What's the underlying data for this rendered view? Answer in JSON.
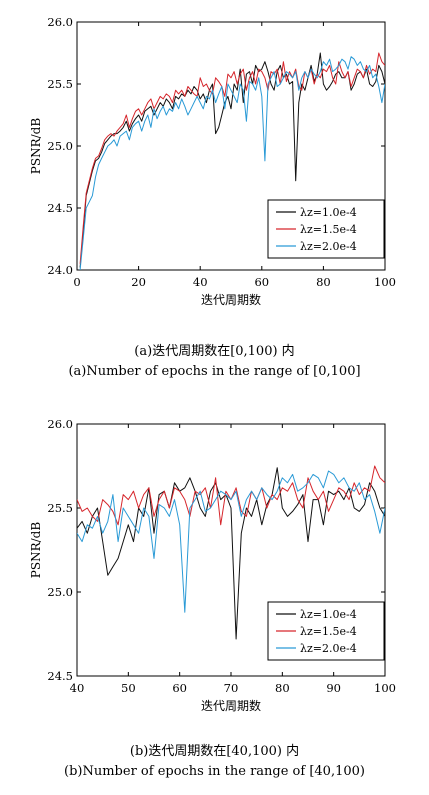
{
  "chart_data": [
    {
      "type": "line",
      "panel": "a",
      "xlabel": "迭代周期数",
      "ylabel": "PSNR/dB",
      "xlim": [
        0,
        100
      ],
      "ylim": [
        24.0,
        26.0
      ],
      "xticks": [
        "0",
        "20",
        "40",
        "60",
        "80",
        "100"
      ],
      "yticks": [
        "24.0",
        "24.5",
        "25.0",
        "25.5",
        "26.0"
      ],
      "legend_position": "bottom-right",
      "grid": false,
      "caption_cn": "(a)迭代周期数在[0,100) 内",
      "caption_en": "(a)Number of epochs in the range of [0,100]",
      "x": [
        1,
        2,
        3,
        4,
        5,
        6,
        7,
        8,
        9,
        10,
        11,
        12,
        13,
        14,
        15,
        16,
        17,
        18,
        19,
        20,
        21,
        22,
        23,
        24,
        25,
        26,
        27,
        28,
        29,
        30,
        31,
        32,
        33,
        34,
        35,
        36,
        37,
        38,
        39,
        40,
        41,
        42,
        43,
        44,
        45,
        46,
        47,
        48,
        49,
        50,
        51,
        52,
        53,
        54,
        55,
        56,
        57,
        58,
        59,
        60,
        61,
        62,
        63,
        64,
        65,
        66,
        67,
        68,
        69,
        70,
        71,
        72,
        73,
        74,
        75,
        76,
        77,
        78,
        79,
        80,
        81,
        82,
        83,
        84,
        85,
        86,
        87,
        88,
        89,
        90,
        91,
        92,
        93,
        94,
        95,
        96,
        97,
        98,
        99,
        100
      ],
      "series": [
        {
          "name": "λz=1.0e-4",
          "color": "#111111",
          "values": [
            24.02,
            24.3,
            24.6,
            24.7,
            24.8,
            24.88,
            24.9,
            24.95,
            25.02,
            25.05,
            25.08,
            25.1,
            25.1,
            25.12,
            25.15,
            25.2,
            25.12,
            25.18,
            25.22,
            25.25,
            25.2,
            25.28,
            25.3,
            25.32,
            25.25,
            25.3,
            25.35,
            25.32,
            25.38,
            25.35,
            25.3,
            25.4,
            25.38,
            25.42,
            25.4,
            25.45,
            25.42,
            25.48,
            25.45,
            25.38,
            25.42,
            25.35,
            25.45,
            25.5,
            25.1,
            25.15,
            25.25,
            25.35,
            25.4,
            25.3,
            25.5,
            25.45,
            25.62,
            25.35,
            25.58,
            25.6,
            25.5,
            25.65,
            25.6,
            25.62,
            25.68,
            25.6,
            25.5,
            25.45,
            25.6,
            25.65,
            25.55,
            25.58,
            25.5,
            25.52,
            24.72,
            25.35,
            25.5,
            25.45,
            25.55,
            25.65,
            25.52,
            25.58,
            25.75,
            25.5,
            25.45,
            25.48,
            25.52,
            25.58,
            25.6,
            25.55,
            25.55,
            25.6,
            25.45,
            25.5,
            25.58,
            25.6,
            25.55,
            25.62,
            25.5,
            25.48,
            25.52,
            25.65,
            25.6,
            25.5
          ]
        },
        {
          "name": "λz=1.5e-4",
          "color": "#d6262c",
          "values": [
            24.05,
            24.35,
            24.62,
            24.72,
            24.82,
            24.9,
            24.92,
            24.98,
            25.05,
            25.08,
            25.1,
            25.08,
            25.12,
            25.15,
            25.18,
            25.25,
            25.15,
            25.22,
            25.28,
            25.3,
            25.25,
            25.3,
            25.35,
            25.38,
            25.3,
            25.35,
            25.4,
            25.38,
            25.42,
            25.4,
            25.35,
            25.45,
            25.42,
            25.45,
            25.4,
            25.48,
            25.45,
            25.42,
            25.4,
            25.55,
            25.48,
            25.5,
            25.45,
            25.42,
            25.55,
            25.52,
            25.48,
            25.4,
            25.58,
            25.55,
            25.6,
            25.5,
            25.58,
            25.62,
            25.45,
            25.55,
            25.6,
            25.5,
            25.62,
            25.6,
            25.55,
            25.45,
            25.6,
            25.58,
            25.62,
            25.5,
            25.68,
            25.52,
            25.6,
            25.55,
            25.62,
            25.48,
            25.45,
            25.6,
            25.55,
            25.62,
            25.5,
            25.58,
            25.55,
            25.62,
            25.6,
            25.65,
            25.55,
            25.5,
            25.68,
            25.6,
            25.55,
            25.6,
            25.48,
            25.55,
            25.62,
            25.6,
            25.55,
            25.65,
            25.58,
            25.62,
            25.6,
            25.75,
            25.68,
            25.65
          ]
        },
        {
          "name": "λz=2.0e-4",
          "color": "#2a9ad6",
          "values": [
            24.0,
            24.25,
            24.5,
            24.55,
            24.6,
            24.75,
            24.85,
            24.9,
            24.95,
            25.0,
            25.02,
            25.05,
            25.0,
            25.08,
            25.1,
            25.12,
            25.05,
            25.15,
            25.18,
            25.2,
            25.12,
            25.2,
            25.25,
            25.15,
            25.3,
            25.22,
            25.28,
            25.32,
            25.25,
            25.3,
            25.28,
            25.35,
            25.3,
            25.38,
            25.32,
            25.25,
            25.3,
            25.35,
            25.4,
            25.35,
            25.3,
            25.4,
            25.38,
            25.45,
            25.35,
            25.42,
            25.48,
            25.3,
            25.5,
            25.45,
            25.4,
            25.35,
            25.5,
            25.45,
            25.2,
            25.52,
            25.5,
            25.45,
            25.55,
            25.4,
            24.88,
            25.5,
            25.55,
            25.6,
            25.48,
            25.5,
            25.55,
            25.6,
            25.58,
            25.55,
            25.6,
            25.45,
            25.55,
            25.6,
            25.55,
            25.62,
            25.58,
            25.55,
            25.6,
            25.68,
            25.65,
            25.7,
            25.6,
            25.62,
            25.65,
            25.7,
            25.68,
            25.62,
            25.72,
            25.7,
            25.65,
            25.68,
            25.62,
            25.6,
            25.65,
            25.55,
            25.58,
            25.48,
            25.35,
            25.5
          ]
        }
      ]
    },
    {
      "type": "line",
      "panel": "b",
      "xlabel": "迭代周期数",
      "ylabel": "PSNR/dB",
      "xlim": [
        40,
        100
      ],
      "ylim": [
        24.5,
        26.0
      ],
      "xticks": [
        "40",
        "50",
        "60",
        "70",
        "80",
        "90",
        "100"
      ],
      "yticks": [
        "24.5",
        "25.0",
        "25.5",
        "26.0"
      ],
      "legend_position": "bottom-right",
      "grid": false,
      "caption_cn": "(b)迭代周期数在[40,100) 内",
      "caption_en": "(b)Number of epochs in the range of [40,100)",
      "x": [
        40,
        41,
        42,
        43,
        44,
        45,
        46,
        47,
        48,
        49,
        50,
        51,
        52,
        53,
        54,
        55,
        56,
        57,
        58,
        59,
        60,
        61,
        62,
        63,
        64,
        65,
        66,
        67,
        68,
        69,
        70,
        71,
        72,
        73,
        74,
        75,
        76,
        77,
        78,
        79,
        80,
        81,
        82,
        83,
        84,
        85,
        86,
        87,
        88,
        89,
        90,
        91,
        92,
        93,
        94,
        95,
        96,
        97,
        98,
        99,
        100
      ],
      "series": [
        {
          "name": "λz=1.0e-4",
          "color": "#111111",
          "values": [
            25.38,
            25.42,
            25.35,
            25.45,
            25.5,
            25.3,
            25.1,
            25.15,
            25.2,
            25.3,
            25.4,
            25.3,
            25.5,
            25.45,
            25.62,
            25.35,
            25.58,
            25.6,
            25.5,
            25.65,
            25.6,
            25.62,
            25.68,
            25.6,
            25.5,
            25.45,
            25.6,
            25.65,
            25.55,
            25.58,
            25.5,
            24.72,
            25.35,
            25.5,
            25.45,
            25.55,
            25.4,
            25.52,
            25.58,
            25.74,
            25.5,
            25.45,
            25.48,
            25.52,
            25.58,
            25.3,
            25.55,
            25.55,
            25.4,
            25.6,
            25.58,
            25.6,
            25.55,
            25.62,
            25.5,
            25.48,
            25.52,
            25.65,
            25.6,
            25.5,
            25.45
          ]
        },
        {
          "name": "λz=1.5e-4",
          "color": "#d6262c",
          "values": [
            25.55,
            25.48,
            25.5,
            25.45,
            25.42,
            25.55,
            25.52,
            25.48,
            25.4,
            25.58,
            25.55,
            25.6,
            25.5,
            25.58,
            25.62,
            25.45,
            25.55,
            25.6,
            25.5,
            25.62,
            25.6,
            25.55,
            25.45,
            25.6,
            25.58,
            25.62,
            25.5,
            25.68,
            25.4,
            25.6,
            25.55,
            25.62,
            25.48,
            25.45,
            25.6,
            25.55,
            25.62,
            25.5,
            25.58,
            25.55,
            25.62,
            25.6,
            25.65,
            25.55,
            25.5,
            25.68,
            25.6,
            25.55,
            25.6,
            25.48,
            25.55,
            25.62,
            25.6,
            25.55,
            25.65,
            25.58,
            25.62,
            25.6,
            25.75,
            25.68,
            25.65
          ]
        },
        {
          "name": "λz=2.0e-4",
          "color": "#2a9ad6",
          "values": [
            25.35,
            25.3,
            25.4,
            25.38,
            25.45,
            25.35,
            25.42,
            25.58,
            25.3,
            25.5,
            25.45,
            25.4,
            25.35,
            25.5,
            25.45,
            25.2,
            25.52,
            25.5,
            25.45,
            25.55,
            25.4,
            24.88,
            25.5,
            25.55,
            25.6,
            25.48,
            25.5,
            25.55,
            25.6,
            25.58,
            25.55,
            25.6,
            25.45,
            25.55,
            25.6,
            25.55,
            25.62,
            25.58,
            25.55,
            25.6,
            25.68,
            25.65,
            25.7,
            25.6,
            25.62,
            25.65,
            25.7,
            25.68,
            25.62,
            25.72,
            25.7,
            25.65,
            25.68,
            25.62,
            25.6,
            25.65,
            25.55,
            25.58,
            25.48,
            25.35,
            25.5
          ]
        }
      ]
    }
  ]
}
